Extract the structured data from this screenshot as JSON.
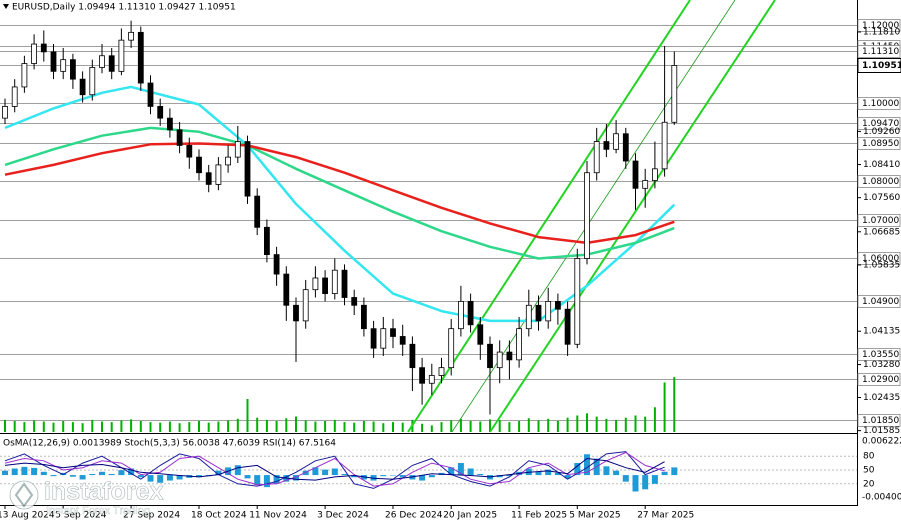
{
  "chart_data": {
    "type": "candlestick",
    "title": "EURUSD,Daily  1.09494 1.11310 1.09427 1.10951",
    "ylim": [
      1.0155,
      1.1263
    ],
    "open": [
      1.096,
      1.099,
      1.104,
      1.11,
      1.115,
      1.113,
      1.108,
      1.111,
      1.106,
      1.102,
      1.109,
      1.112,
      1.108,
      1.116,
      1.118,
      1.105,
      1.099,
      1.096,
      1.093,
      1.089,
      1.086,
      1.082,
      1.079,
      1.084,
      1.086,
      1.09,
      1.076,
      1.068,
      1.061,
      1.056,
      1.048,
      1.044,
      1.052,
      1.055,
      1.051,
      1.057,
      1.05,
      1.048,
      1.042,
      1.037,
      1.042,
      1.04,
      1.038,
      1.032,
      1.028,
      1.03,
      1.032,
      1.042,
      1.049,
      1.043,
      1.038,
      1.032,
      1.036,
      1.034,
      1.042,
      1.048,
      1.044,
      1.049,
      1.047,
      1.038,
      1.06,
      1.082,
      1.09,
      1.088,
      1.092,
      1.085,
      1.078,
      1.08,
      1.083,
      1.09494
    ],
    "high": [
      1.101,
      1.106,
      1.112,
      1.1175,
      1.1185,
      1.115,
      1.114,
      1.1125,
      1.108,
      1.111,
      1.115,
      1.114,
      1.119,
      1.121,
      1.1195,
      1.107,
      1.101,
      1.0985,
      1.095,
      1.091,
      1.088,
      1.084,
      1.086,
      1.089,
      1.094,
      1.0915,
      1.078,
      1.07,
      1.063,
      1.058,
      1.05,
      1.0545,
      1.058,
      1.057,
      1.06,
      1.0585,
      1.052,
      1.05,
      1.044,
      1.045,
      1.0445,
      1.043,
      1.04,
      1.0345,
      1.033,
      1.0345,
      1.0445,
      1.053,
      1.051,
      1.045,
      1.04,
      1.039,
      1.039,
      1.045,
      1.052,
      1.0505,
      1.0525,
      1.051,
      1.049,
      1.0625,
      1.085,
      1.0935,
      1.0945,
      1.0955,
      1.0935,
      1.087,
      1.083,
      1.09,
      1.1145,
      1.1131
    ],
    "low": [
      1.0945,
      1.0975,
      1.1025,
      1.1085,
      1.1105,
      1.106,
      1.106,
      1.1035,
      1.1,
      1.1005,
      1.1075,
      1.106,
      1.107,
      1.114,
      1.103,
      1.097,
      1.094,
      1.091,
      1.087,
      1.083,
      1.08,
      1.077,
      1.0775,
      1.082,
      1.0845,
      1.074,
      1.066,
      1.059,
      1.053,
      1.044,
      1.0335,
      1.042,
      1.05,
      1.049,
      1.0495,
      1.048,
      1.0455,
      1.04,
      1.0345,
      1.035,
      1.037,
      1.035,
      1.026,
      1.0225,
      1.025,
      1.028,
      1.03,
      1.04,
      1.041,
      1.034,
      1.02,
      1.028,
      1.029,
      1.032,
      1.04,
      1.0415,
      1.042,
      1.043,
      1.035,
      1.037,
      1.0585,
      1.08,
      1.086,
      1.087,
      1.083,
      1.0725,
      1.073,
      1.078,
      1.081,
      1.09427
    ],
    "close": [
      1.099,
      1.104,
      1.11,
      1.115,
      1.113,
      1.108,
      1.111,
      1.106,
      1.102,
      1.109,
      1.112,
      1.108,
      1.116,
      1.118,
      1.105,
      1.099,
      1.096,
      1.093,
      1.089,
      1.086,
      1.082,
      1.079,
      1.084,
      1.086,
      1.09,
      1.076,
      1.068,
      1.061,
      1.056,
      1.048,
      1.044,
      1.052,
      1.055,
      1.051,
      1.057,
      1.05,
      1.048,
      1.042,
      1.037,
      1.042,
      1.04,
      1.038,
      1.032,
      1.028,
      1.03,
      1.032,
      1.042,
      1.049,
      1.043,
      1.038,
      1.032,
      1.036,
      1.034,
      1.042,
      1.048,
      1.044,
      1.049,
      1.047,
      1.038,
      1.06,
      1.082,
      1.09,
      1.088,
      1.092,
      1.085,
      1.078,
      1.08,
      1.083,
      1.09494,
      1.10951
    ],
    "candle_color": "#000000",
    "volume": [
      22,
      20,
      18,
      21,
      19,
      17,
      20,
      18,
      16,
      22,
      19,
      18,
      21,
      23,
      20,
      18,
      17,
      19,
      16,
      18,
      20,
      17,
      19,
      21,
      24,
      60,
      26,
      22,
      20,
      25,
      28,
      21,
      19,
      20,
      22,
      18,
      17,
      20,
      19,
      16,
      18,
      17,
      22,
      15,
      12,
      18,
      21,
      24,
      20,
      19,
      23,
      22,
      18,
      20,
      25,
      21,
      24,
      20,
      26,
      30,
      34,
      28,
      24,
      22,
      26,
      30,
      28,
      45,
      90,
      100
    ],
    "vlim": [
      0,
      100
    ],
    "volume_color": "#00b000",
    "series": [
      {
        "color": "#33e6f0",
        "x": [
          0,
          5,
          10,
          13,
          20,
          25,
          30,
          35,
          40,
          45,
          50,
          55,
          60,
          65,
          69
        ],
        "values": [
          1.0935,
          1.0985,
          1.1025,
          1.104,
          1.0995,
          1.089,
          1.074,
          1.062,
          1.051,
          1.0465,
          1.044,
          1.044,
          1.053,
          1.064,
          1.0738
        ]
      },
      {
        "color": "#2ed88a",
        "x": [
          0,
          5,
          10,
          15,
          20,
          25,
          30,
          35,
          40,
          45,
          50,
          55,
          60,
          65,
          69
        ],
        "values": [
          1.084,
          1.088,
          1.0915,
          1.0935,
          1.0925,
          1.089,
          1.083,
          1.0775,
          1.072,
          1.067,
          1.063,
          1.06,
          1.061,
          1.064,
          1.0678
        ]
      },
      {
        "color": "#e8211d",
        "x": [
          0,
          5,
          10,
          15,
          20,
          25,
          30,
          35,
          40,
          45,
          50,
          55,
          60,
          65,
          69
        ],
        "values": [
          1.0815,
          1.084,
          1.087,
          1.0893,
          1.0895,
          1.089,
          1.086,
          1.082,
          1.0775,
          1.073,
          1.069,
          1.0655,
          1.064,
          1.066,
          1.0694
        ]
      }
    ],
    "yticks": [
      {
        "value": 1.1181,
        "label": "1.11810"
      },
      {
        "value": 1.0926,
        "label": "1.09260"
      },
      {
        "value": 1.0841,
        "label": "1.08410"
      },
      {
        "value": 1.0756,
        "label": "1.07560"
      },
      {
        "value": 1.06685,
        "label": "1.06685"
      },
      {
        "value": 1.05835,
        "label": "1.05835"
      },
      {
        "value": 1.04135,
        "label": "1.04135"
      },
      {
        "value": 1.0328,
        "label": "1.03280"
      },
      {
        "value": 1.02435,
        "label": "1.02435"
      },
      {
        "value": 1.01585,
        "label": "1.01585"
      }
    ],
    "levels": [
      {
        "value": 1.12,
        "label": "1.12000"
      },
      {
        "value": 1.1145,
        "label": "1.11450"
      },
      {
        "value": 1.1131,
        "label": "1.11310"
      },
      {
        "value": 1.1,
        "label": "1.10000"
      },
      {
        "value": 1.0947,
        "label": "1.09470"
      },
      {
        "value": 1.0895,
        "label": "1.08950"
      },
      {
        "value": 1.08,
        "label": "1.08000"
      },
      {
        "value": 1.07,
        "label": "1.07000"
      },
      {
        "value": 1.06,
        "label": "1.06000"
      },
      {
        "value": 1.049,
        "label": "1.04900"
      },
      {
        "value": 1.0355,
        "label": "1.03550"
      },
      {
        "value": 1.029,
        "label": "1.02900"
      },
      {
        "value": 1.0185,
        "label": "1.01850"
      }
    ],
    "last_price": 1.10951,
    "xticks": [
      {
        "value": 0,
        "label": "13 Aug 2024"
      },
      {
        "value": 6,
        "label": "5 Sep 2024"
      },
      {
        "value": 13,
        "label": "27 Sep 2024"
      },
      {
        "value": 20,
        "label": "18 Oct 2024"
      },
      {
        "value": 26,
        "label": "11 Nov 2024"
      },
      {
        "value": 33,
        "label": "3 Dec 2024"
      },
      {
        "value": 40,
        "label": "26 Dec 2024"
      },
      {
        "value": 46,
        "label": "20 Jan 2025"
      },
      {
        "value": 53,
        "label": "11 Feb 2025"
      },
      {
        "value": 59,
        "label": "5 Mar 2025"
      },
      {
        "value": 66,
        "label": "27 Mar 2025"
      }
    ],
    "indicator": {
      "title": "OsMA(12,26,9) 0.0013989  Stoch(5,3,3) 56.0038 47.6039  RSI(14) 67.5164",
      "osma": [
        0.0008,
        0.0012,
        0.0015,
        0.0013,
        0.0006,
        -0.0002,
        0.0004,
        -0.0003,
        -0.0008,
        0.0002,
        0.0006,
        0.0002,
        0.0009,
        0.0012,
        -0.0004,
        -0.0012,
        -0.0014,
        -0.001,
        -0.0008,
        -0.0005,
        -0.0004,
        -0.0002,
        0.0008,
        0.0014,
        0.0018,
        -0.0006,
        -0.0018,
        -0.0022,
        -0.0016,
        -0.0012,
        -0.001,
        0.0008,
        0.0014,
        0.001,
        0.0012,
        0.0002,
        -0.0004,
        -0.0008,
        -0.001,
        -0.0002,
        0.0,
        -0.0004,
        -0.0008,
        -0.001,
        -0.0004,
        0.0004,
        0.0014,
        0.0022,
        0.0012,
        0.0002,
        -0.0008,
        -0.0004,
        -0.0002,
        0.0006,
        0.0012,
        0.0006,
        0.001,
        0.0004,
        -0.0006,
        0.0022,
        0.0038,
        0.003,
        0.0016,
        0.0008,
        -0.0012,
        -0.003,
        -0.0026,
        -0.0016,
        0.0006,
        0.0014
      ],
      "osma_color": "#1e9bd7",
      "osma_lim": [
        -0.004004,
        0.006222
      ],
      "osma_ticks": [
        0.006222,
        -0.004004
      ],
      "osc_lim": [
        0,
        100
      ],
      "osc_ticks": [
        80,
        50,
        20
      ],
      "x": [
        0,
        2,
        4,
        6,
        8,
        10,
        12,
        14,
        16,
        18,
        20,
        22,
        24,
        26,
        28,
        30,
        32,
        34,
        36,
        38,
        40,
        42,
        44,
        46,
        48,
        50,
        52,
        54,
        56,
        58,
        60,
        62,
        64,
        66,
        68
      ],
      "lines": [
        {
          "color": "#1a1aa0",
          "values": [
            70,
            85,
            60,
            40,
            65,
            80,
            55,
            30,
            60,
            85,
            75,
            40,
            20,
            15,
            25,
            45,
            70,
            80,
            20,
            10,
            30,
            60,
            75,
            40,
            25,
            15,
            35,
            70,
            60,
            30,
            55,
            85,
            90,
            40,
            56
          ]
        },
        {
          "color": "#9a2fd0",
          "values": [
            65,
            75,
            70,
            50,
            55,
            70,
            65,
            40,
            45,
            75,
            80,
            55,
            30,
            18,
            20,
            35,
            55,
            75,
            40,
            15,
            20,
            45,
            65,
            55,
            30,
            20,
            25,
            55,
            65,
            40,
            45,
            70,
            88,
            60,
            48
          ]
        },
        {
          "color": "#000080",
          "values": [
            60,
            65,
            62,
            55,
            60,
            62,
            55,
            45,
            42,
            38,
            35,
            40,
            55,
            60,
            35,
            30,
            28,
            35,
            38,
            32,
            30,
            35,
            42,
            40,
            38,
            35,
            40,
            45,
            48,
            42,
            75,
            70,
            55,
            45,
            68
          ]
        }
      ]
    },
    "watermark": {
      "brand": "instaforex",
      "tagline": "Instant Forex Trading"
    }
  }
}
